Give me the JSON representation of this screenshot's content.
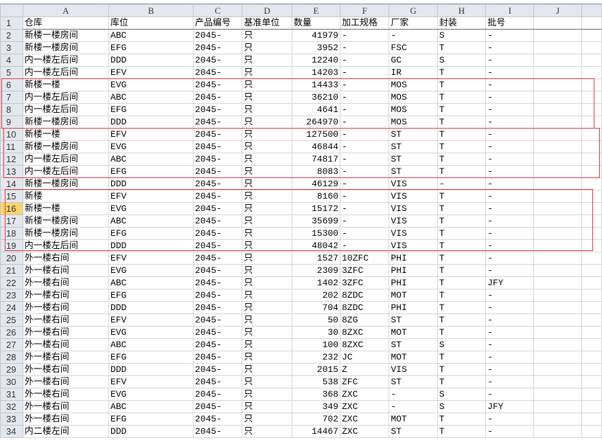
{
  "columns": [
    "A",
    "B",
    "C",
    "D",
    "E",
    "F",
    "G",
    "H",
    "I",
    "J",
    ""
  ],
  "selected_row": 16,
  "highlight_color": "#e8333a",
  "header": [
    "仓库",
    "库位",
    "产品编号",
    "基准单位",
    "数量",
    "加工规格",
    "厂家",
    "封装",
    "批号",
    "",
    ""
  ],
  "rows": [
    [
      "新楼一楼房间",
      "ABC",
      "2045-",
      "只",
      "41979",
      "-",
      "-",
      "S",
      "-"
    ],
    [
      "新楼一楼房间",
      "EFG",
      "2045-",
      "只",
      "3952",
      "-",
      "FSC",
      "T",
      "-"
    ],
    [
      "内一楼左后间",
      "DDD",
      "2045-",
      "只",
      "12240",
      "-",
      "GC",
      "S",
      "-"
    ],
    [
      "内一楼左后间",
      "EFV",
      "2045-",
      "只",
      "14203",
      "-",
      "IR",
      "T",
      "-"
    ],
    [
      "新楼一楼",
      "EVG",
      "2045-",
      "只",
      "14433",
      "-",
      "MOS",
      "T",
      "-"
    ],
    [
      "内一楼左后间",
      "ABC",
      "2045-",
      "只",
      "36210",
      "-",
      "MOS",
      "T",
      "-"
    ],
    [
      "内一楼左后间",
      "EFG",
      "2045-",
      "只",
      "4641",
      "-",
      "MOS",
      "T",
      "-"
    ],
    [
      "新楼一楼房间",
      "DDD",
      "2045-",
      "只",
      "264970",
      "-",
      "MOS",
      "T",
      "-"
    ],
    [
      "新楼一楼",
      "EFV",
      "2045-",
      "只",
      "127500",
      "-",
      "ST",
      "T",
      "-"
    ],
    [
      "新楼一楼房间",
      "EVG",
      "2045-",
      "只",
      "46844",
      "-",
      "ST",
      "T",
      "-"
    ],
    [
      "内一楼左后间",
      "ABC",
      "2045-",
      "只",
      "74817",
      "-",
      "ST",
      "T",
      "-"
    ],
    [
      "内一楼左后间",
      "EFG",
      "2045-",
      "只",
      "8083",
      "-",
      "ST",
      "T",
      "-"
    ],
    [
      "新楼一楼房间",
      "DDD",
      "2045-",
      "只",
      "46129",
      "-",
      "VIS",
      "-",
      "-"
    ],
    [
      "新楼",
      "EFV",
      "2045-",
      "只",
      "8160",
      "-",
      "VIS",
      "T",
      "-"
    ],
    [
      "新楼一楼",
      "EVG",
      "2045-",
      "只",
      "15172",
      "-",
      "VIS",
      "T",
      "-"
    ],
    [
      "新楼一楼房间",
      "ABC",
      "2045-",
      "只",
      "35699",
      "-",
      "VIS",
      "T",
      "-"
    ],
    [
      "新楼一楼房间",
      "EFG",
      "2045-",
      "只",
      "15300",
      "-",
      "VIS",
      "T",
      "-"
    ],
    [
      "内一楼左后间",
      "DDD",
      "2045-",
      "只",
      "48042",
      "-",
      "VIS",
      "T",
      "-"
    ],
    [
      "外一楼右间",
      "EFV",
      "2045-",
      "只",
      "1527",
      "10ZFC",
      "PHI",
      "T",
      "-"
    ],
    [
      "外一楼右间",
      "EVG",
      "2045-",
      "只",
      "2309",
      "3ZFC",
      "PHI",
      "T",
      "-"
    ],
    [
      "外一楼右间",
      "ABC",
      "2045-",
      "只",
      "1402",
      "3ZFC",
      "PHI",
      "T",
      "JFY"
    ],
    [
      "外一楼右间",
      "EFG",
      "2045-",
      "只",
      "202",
      "8ZDC",
      "MOT",
      "T",
      "-"
    ],
    [
      "外一楼右间",
      "DDD",
      "2045-",
      "只",
      "704",
      "8ZDC",
      "PHI",
      "T",
      "-"
    ],
    [
      "外一楼右间",
      "EFV",
      "2045-",
      "只",
      "50",
      "8ZG",
      "ST",
      "T",
      "-"
    ],
    [
      "外一楼右间",
      "EVG",
      "2045-",
      "只",
      "30",
      "8ZXC",
      "MOT",
      "T",
      "-"
    ],
    [
      "外一楼右间",
      "ABC",
      "2045-",
      "只",
      "100",
      "8ZXC",
      "ST",
      "S",
      "-"
    ],
    [
      "外一楼右间",
      "EFG",
      "2045-",
      "只",
      "232",
      "JC",
      "MOT",
      "T",
      "-"
    ],
    [
      "外一楼右间",
      "DDD",
      "2045-",
      "只",
      "2015",
      "Z",
      "VIS",
      "T",
      "-"
    ],
    [
      "外一楼右间",
      "EFV",
      "2045-",
      "只",
      "538",
      "ZFC",
      "ST",
      "T",
      "-"
    ],
    [
      "外一楼右间",
      "EVG",
      "2045-",
      "只",
      "368",
      "ZXC",
      "-",
      "S",
      "-"
    ],
    [
      "外一楼右间",
      "ABC",
      "2045-",
      "只",
      "349",
      "ZXC",
      "-",
      "S",
      "JFY"
    ],
    [
      "外一楼右间",
      "EFG",
      "2045-",
      "只",
      "702",
      "ZXC",
      "MOT",
      "T",
      "-"
    ],
    [
      "内二楼左间",
      "DDD",
      "2045-",
      "只",
      "14467",
      "ZXC",
      "ST",
      "T",
      "-"
    ]
  ]
}
